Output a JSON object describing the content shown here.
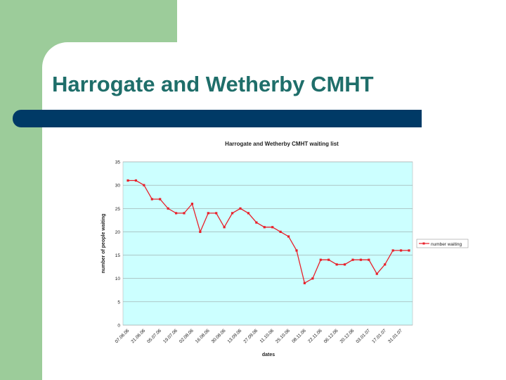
{
  "slide": {
    "title": "Harrogate and Wetherby CMHT",
    "colors": {
      "title": "#1f6e6a",
      "bar": "#003a66",
      "accent_green": "#9ccc9a"
    }
  },
  "chart_data": {
    "type": "line",
    "title": "Harrogate and Wetherby CMHT waiting list",
    "xlabel": "dates",
    "ylabel": "number of people waiting",
    "ylim": [
      0,
      35
    ],
    "yticks": [
      0,
      5,
      10,
      15,
      20,
      25,
      30,
      35
    ],
    "grid": true,
    "legend_position": "right",
    "plot_background": "#ccffff",
    "x_tick_labels": [
      "07.06.06",
      "21.06.06",
      "05.07.06",
      "19.07.06",
      "02.08.06",
      "16.08.06",
      "30.08.06",
      "13.09.06",
      "27.09.06",
      "11.10.06",
      "25.10.06",
      "08.11.06",
      "22.11.06",
      "06.12.06",
      "20.12.06",
      "03.01.07",
      "17.01.07",
      "31.01.07"
    ],
    "series": [
      {
        "name": "number waiting",
        "color": "#e8202a",
        "values": [
          31,
          31,
          30,
          27,
          27,
          25,
          24,
          24,
          26,
          20,
          24,
          24,
          21,
          24,
          25,
          24,
          22,
          21,
          21,
          20,
          19,
          16,
          9,
          10,
          14,
          14,
          13,
          13,
          14,
          14,
          14,
          11,
          13,
          16,
          16,
          16
        ]
      }
    ]
  }
}
